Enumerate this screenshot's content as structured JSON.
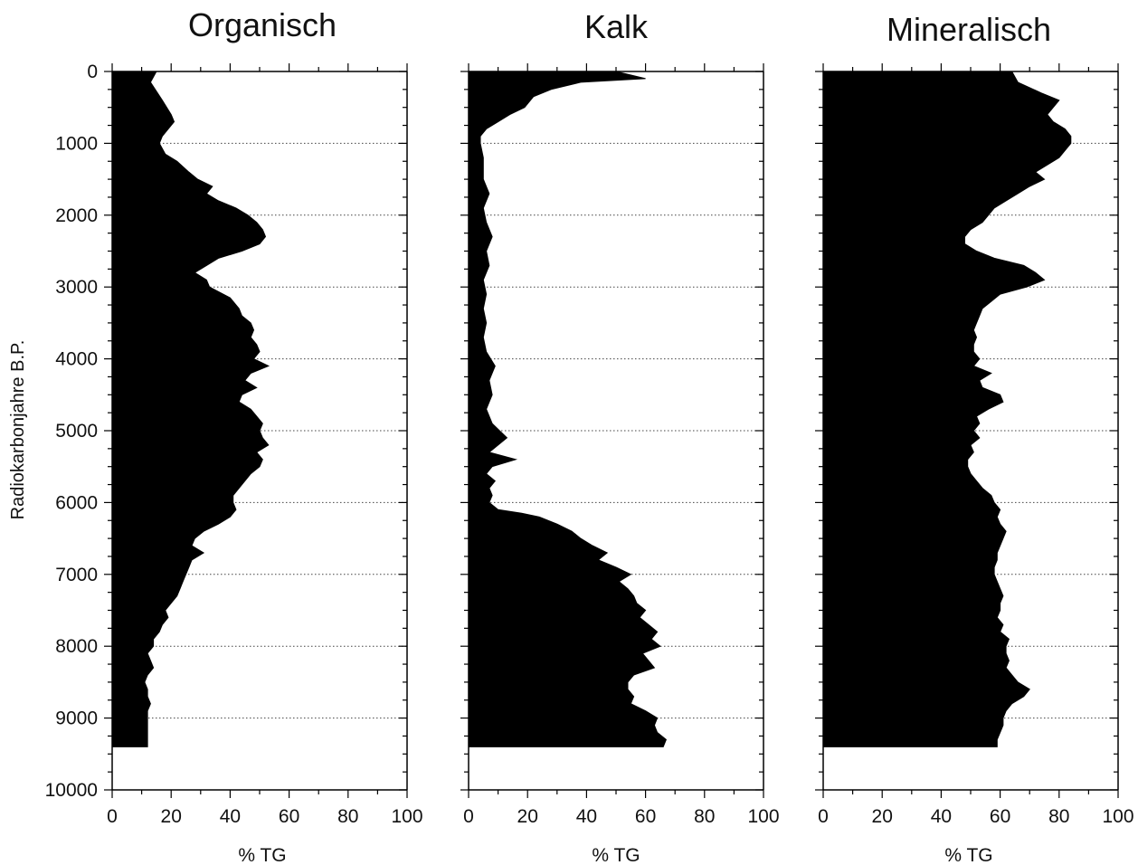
{
  "chart_data": {
    "type": "area",
    "ylabel": "Radiokarbonjahre B.P.",
    "y_axis": {
      "ticks": [
        0,
        1000,
        2000,
        3000,
        4000,
        5000,
        6000,
        7000,
        8000,
        9000,
        10000
      ],
      "range": [
        0,
        10000
      ],
      "inverted": true
    },
    "x_axis": {
      "ticks": [
        0,
        20,
        40,
        60,
        80,
        100
      ],
      "range": [
        0,
        100
      ]
    },
    "grid": "dotted horizontal lines every 1000 years",
    "series": [
      {
        "name": "Organisch",
        "xlabel": "% TG",
        "age": [
          0,
          150,
          400,
          600,
          700,
          900,
          1000,
          1150,
          1250,
          1400,
          1500,
          1600,
          1700,
          1800,
          1900,
          2000,
          2100,
          2200,
          2300,
          2400,
          2500,
          2600,
          2700,
          2800,
          2900,
          3000,
          3150,
          3300,
          3400,
          3500,
          3600,
          3700,
          3800,
          3900,
          4000,
          4100,
          4200,
          4300,
          4400,
          4500,
          4600,
          4700,
          4800,
          4900,
          5000,
          5100,
          5200,
          5300,
          5400,
          5500,
          5600,
          5700,
          5800,
          5900,
          6000,
          6100,
          6200,
          6300,
          6400,
          6500,
          6600,
          6700,
          6800,
          6900,
          7000,
          7100,
          7200,
          7300,
          7400,
          7500,
          7600,
          7700,
          7800,
          7900,
          8000,
          8100,
          8200,
          8300,
          8400,
          8500,
          8600,
          8700,
          8800,
          8900,
          9000,
          9100,
          9200,
          9300,
          9400
        ],
        "values": [
          15,
          13,
          17,
          20,
          21,
          17,
          16,
          18,
          22,
          26,
          29,
          34,
          32,
          36,
          42,
          46,
          49,
          51,
          52,
          50,
          44,
          36,
          32,
          28,
          32,
          33,
          40,
          43,
          44,
          47,
          48,
          47,
          49,
          50,
          48,
          53,
          47,
          45,
          49,
          44,
          43,
          47,
          49,
          51,
          50,
          51,
          53,
          49,
          51,
          50,
          47,
          45,
          43,
          41,
          41,
          42,
          40,
          36,
          31,
          28,
          27,
          31,
          27,
          26,
          25,
          24,
          23,
          22,
          20,
          18,
          19,
          17,
          16,
          14,
          14,
          12,
          13,
          14,
          12,
          11,
          12,
          12,
          13,
          12,
          12,
          12,
          12,
          12,
          12
        ]
      },
      {
        "name": "Kalk",
        "xlabel": "% TG",
        "age": [
          0,
          100,
          150,
          250,
          350,
          500,
          600,
          700,
          800,
          900,
          1000,
          1200,
          1500,
          1700,
          1900,
          2100,
          2300,
          2500,
          2700,
          2900,
          3100,
          3300,
          3500,
          3700,
          3900,
          4100,
          4300,
          4500,
          4700,
          4900,
          5100,
          5200,
          5300,
          5400,
          5500,
          5600,
          5700,
          5800,
          5900,
          6000,
          6100,
          6150,
          6200,
          6300,
          6400,
          6500,
          6600,
          6700,
          6800,
          6900,
          7000,
          7100,
          7200,
          7300,
          7400,
          7500,
          7600,
          7700,
          7800,
          7900,
          8000,
          8100,
          8200,
          8300,
          8400,
          8500,
          8600,
          8700,
          8800,
          8900,
          9000,
          9100,
          9200,
          9300,
          9400
        ],
        "values": [
          50,
          60,
          38,
          28,
          22,
          19,
          14,
          10,
          6,
          4,
          4,
          5,
          5,
          7,
          5,
          6,
          8,
          6,
          7,
          5,
          6,
          5,
          6,
          5,
          6,
          9,
          7,
          8,
          6,
          8,
          13,
          10,
          7,
          16,
          8,
          6,
          9,
          7,
          8,
          7,
          10,
          18,
          24,
          30,
          35,
          38,
          42,
          47,
          44,
          50,
          55,
          51,
          54,
          56,
          57,
          60,
          58,
          61,
          64,
          62,
          65,
          59,
          61,
          63,
          56,
          54,
          54,
          56,
          55,
          60,
          64,
          63,
          64,
          67,
          66
        ]
      },
      {
        "name": "Mineralisch",
        "xlabel": "% TG",
        "age": [
          0,
          150,
          300,
          400,
          500,
          600,
          700,
          800,
          900,
          1000,
          1100,
          1200,
          1300,
          1400,
          1500,
          1600,
          1700,
          1800,
          1900,
          2000,
          2100,
          2200,
          2300,
          2400,
          2500,
          2600,
          2700,
          2800,
          2900,
          3000,
          3100,
          3200,
          3300,
          3400,
          3500,
          3600,
          3700,
          3800,
          3900,
          4000,
          4100,
          4200,
          4300,
          4400,
          4500,
          4600,
          4700,
          4800,
          4900,
          5000,
          5100,
          5200,
          5300,
          5400,
          5500,
          5600,
          5700,
          5800,
          5900,
          6000,
          6100,
          6200,
          6300,
          6400,
          6500,
          6600,
          6700,
          6800,
          6900,
          7000,
          7100,
          7200,
          7300,
          7400,
          7500,
          7600,
          7700,
          7800,
          7900,
          8000,
          8100,
          8200,
          8300,
          8400,
          8500,
          8600,
          8700,
          8800,
          8900,
          9000,
          9100,
          9200,
          9300,
          9400
        ],
        "values": [
          64,
          66,
          74,
          80,
          78,
          76,
          78,
          82,
          84,
          84,
          82,
          80,
          76,
          72,
          75,
          70,
          66,
          62,
          58,
          56,
          54,
          50,
          48,
          48,
          52,
          58,
          68,
          72,
          75,
          69,
          60,
          57,
          54,
          53,
          52,
          51,
          52,
          51,
          51,
          53,
          51,
          57,
          53,
          54,
          60,
          61,
          56,
          52,
          53,
          51,
          53,
          50,
          51,
          49,
          49,
          50,
          52,
          54,
          57,
          58,
          60,
          59,
          60,
          62,
          61,
          60,
          59,
          59,
          58,
          58,
          59,
          60,
          61,
          60,
          60,
          59,
          61,
          60,
          63,
          62,
          62,
          63,
          62,
          64,
          66,
          70,
          68,
          64,
          62,
          61,
          61,
          60,
          59,
          59
        ]
      }
    ]
  }
}
